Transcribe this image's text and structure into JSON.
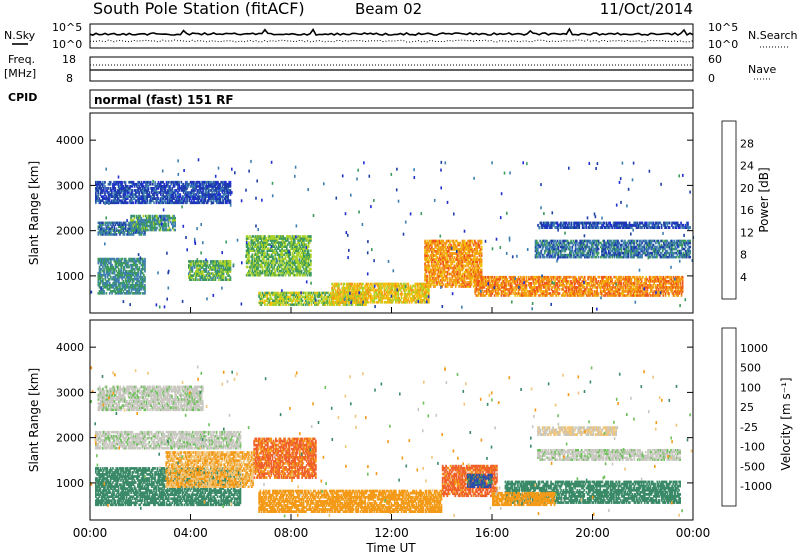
{
  "header": {
    "station": "South Pole Station (fitACF)",
    "beam": "Beam 02",
    "date": "11/Oct/2014"
  },
  "noise_panel": {
    "left_label": "N.Sky",
    "right_label": "N.Search",
    "left_ticks": [
      "10^5",
      "10^0"
    ],
    "right_ticks": [
      "10^5",
      "10^0"
    ]
  },
  "freq_panel": {
    "left_label_1": "Freq.",
    "left_label_2": "[MHz]",
    "left_ticks": [
      "18",
      "8"
    ],
    "right_label": "Nave",
    "right_ticks": [
      "60",
      "0"
    ],
    "cpid_label": "CPID",
    "cpid_text": "normal (fast) 151 RF"
  },
  "time_axis": {
    "label": "Time UT",
    "ticks": [
      "00:00",
      "04:00",
      "08:00",
      "12:00",
      "16:00",
      "20:00",
      "00:00"
    ]
  },
  "power_panel": {
    "ylabel": "Slant Range [km]",
    "yticks": [
      "4000",
      "3000",
      "2000",
      "1000"
    ],
    "colorbar_label": "Power [dB]",
    "colorbar_ticks": [
      "28",
      "24",
      "20",
      "16",
      "12",
      "8",
      "4"
    ]
  },
  "velocity_panel": {
    "ylabel": "Slant Range [km]",
    "yticks": [
      "4000",
      "3000",
      "2000",
      "1000"
    ],
    "colorbar_label": "Velocity [m s⁻¹]",
    "colorbar_ticks": [
      "1000",
      "500",
      "100",
      "25",
      "-25",
      "-100",
      "-500",
      "-1000"
    ]
  },
  "chart_data": [
    {
      "type": "heatmap",
      "name": "power",
      "x_range_hours": [
        0,
        24
      ],
      "ylim": [
        180,
        4600
      ],
      "colorbar": {
        "levels": [
          0,
          4,
          8,
          12,
          16,
          20,
          24,
          28,
          32
        ],
        "colors": [
          "#1f2fd0",
          "#1e3fa6",
          "#3e7fb0",
          "#3c9a5c",
          "#a8d12a",
          "#f2c10e",
          "#f39a13",
          "#f0581a",
          "#e51818"
        ]
      },
      "regions": [
        {
          "t0": 0.2,
          "t1": 5.6,
          "r0": 2600,
          "r1": 3100,
          "v": 6
        },
        {
          "t0": 0.3,
          "t1": 2.2,
          "r0": 1900,
          "r1": 2200,
          "v": 10
        },
        {
          "t0": 1.6,
          "t1": 3.4,
          "r0": 2000,
          "r1": 2350,
          "v": 13
        },
        {
          "t0": 0.3,
          "t1": 2.2,
          "r0": 600,
          "r1": 1400,
          "v": 12
        },
        {
          "t0": 3.9,
          "t1": 5.6,
          "r0": 900,
          "r1": 1350,
          "v": 15
        },
        {
          "t0": 6.2,
          "t1": 8.8,
          "r0": 1000,
          "r1": 1900,
          "v": 16
        },
        {
          "t0": 6.7,
          "t1": 11.0,
          "r0": 350,
          "r1": 650,
          "v": 18
        },
        {
          "t0": 9.6,
          "t1": 13.5,
          "r0": 400,
          "r1": 850,
          "v": 22
        },
        {
          "t0": 13.3,
          "t1": 15.6,
          "r0": 750,
          "r1": 1800,
          "v": 26
        },
        {
          "t0": 15.3,
          "t1": 23.6,
          "r0": 550,
          "r1": 1000,
          "v": 27
        },
        {
          "t0": 17.7,
          "t1": 23.9,
          "r0": 1400,
          "r1": 1800,
          "v": 10
        },
        {
          "t0": 17.8,
          "t1": 23.9,
          "r0": 2050,
          "r1": 2200,
          "v": 6
        }
      ]
    },
    {
      "type": "heatmap",
      "name": "velocity",
      "x_range_hours": [
        0,
        24
      ],
      "ylim": [
        180,
        4600
      ],
      "colorbar": {
        "levels": [
          -1000,
          -500,
          -100,
          -25,
          25,
          100,
          500,
          1000
        ],
        "colors": [
          "#e11a14",
          "#f0602a",
          "#f39a18",
          "#f1c57a",
          "#c8c8c0",
          "#6dc05a",
          "#3a8a68",
          "#2c4faa",
          "#1e2fc8"
        ]
      },
      "regions": [
        {
          "t0": 0.3,
          "t1": 4.5,
          "r0": 2600,
          "r1": 3150,
          "v": 10
        },
        {
          "t0": 0.2,
          "t1": 6.0,
          "r0": 1750,
          "r1": 2150,
          "v": 10
        },
        {
          "t0": 0.2,
          "t1": 6.0,
          "r0": 500,
          "r1": 1350,
          "v": 300
        },
        {
          "t0": 3.0,
          "t1": 6.5,
          "r0": 900,
          "r1": 1700,
          "v": -100
        },
        {
          "t0": 6.5,
          "t1": 9.0,
          "r0": 1100,
          "r1": 2000,
          "v": -600
        },
        {
          "t0": 6.7,
          "t1": 14.0,
          "r0": 350,
          "r1": 850,
          "v": -200
        },
        {
          "t0": 14.0,
          "t1": 16.2,
          "r0": 700,
          "r1": 1400,
          "v": -700
        },
        {
          "t0": 15.0,
          "t1": 16.0,
          "r0": 900,
          "r1": 1200,
          "v": 600
        },
        {
          "t0": 16.5,
          "t1": 23.5,
          "r0": 550,
          "r1": 1050,
          "v": 300
        },
        {
          "t0": 16.0,
          "t1": 18.5,
          "r0": 500,
          "r1": 800,
          "v": -200
        },
        {
          "t0": 17.8,
          "t1": 23.5,
          "r0": 1500,
          "r1": 1750,
          "v": 10
        },
        {
          "t0": 17.8,
          "t1": 21.0,
          "r0": 2050,
          "r1": 2250,
          "v": -25
        }
      ]
    }
  ]
}
